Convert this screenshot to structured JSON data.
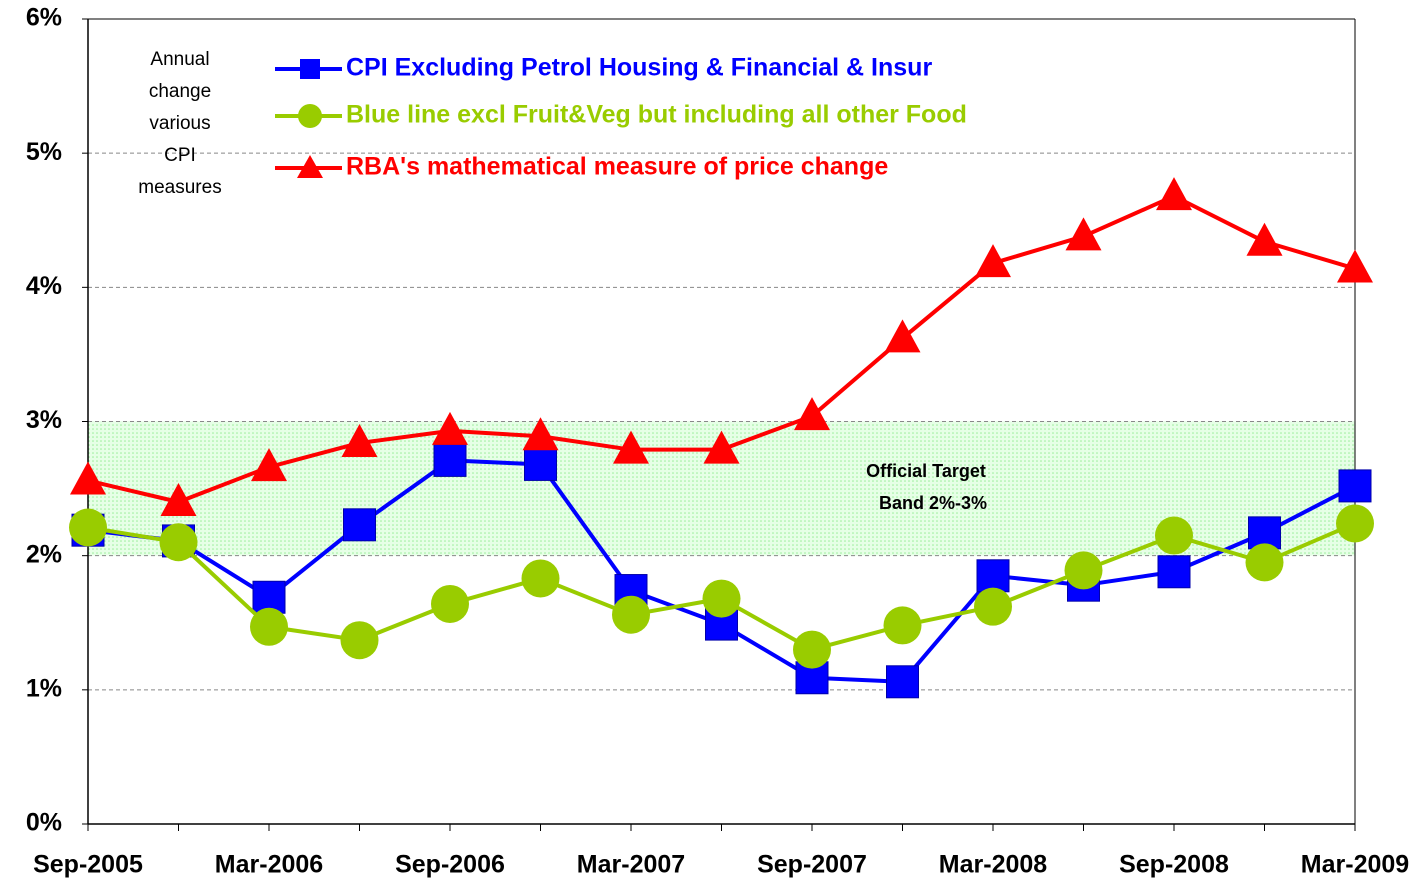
{
  "chart_data": {
    "type": "line",
    "categories": [
      "Sep-2005",
      null,
      "Mar-2006",
      null,
      "Sep-2006",
      null,
      "Mar-2007",
      null,
      "Sep-2007",
      null,
      "Mar-2008",
      null,
      "Sep-2008",
      null,
      "Mar-2009"
    ],
    "series": [
      {
        "name": "CPI Excluding Petrol Housing & Financial & Insur",
        "color": "#0000ff",
        "marker": "square",
        "values": [
          2.19,
          2.11,
          1.69,
          2.23,
          2.71,
          2.68,
          1.74,
          1.49,
          1.09,
          1.06,
          1.85,
          1.78,
          1.88,
          2.17,
          2.52
        ]
      },
      {
        "name": "Blue line excl Fruit&Veg but including all other Food",
        "color": "#99cc00",
        "marker": "circle",
        "values": [
          2.21,
          2.1,
          1.47,
          1.37,
          1.64,
          1.83,
          1.56,
          1.68,
          1.3,
          1.48,
          1.62,
          1.89,
          2.15,
          1.95,
          2.24
        ]
      },
      {
        "name": "RBA's mathematical measure of price change",
        "color": "#ff0000",
        "marker": "triangle",
        "values": [
          2.56,
          2.4,
          2.66,
          2.84,
          2.93,
          2.89,
          2.79,
          2.79,
          3.04,
          3.62,
          4.18,
          4.38,
          4.68,
          4.34,
          4.14
        ]
      }
    ],
    "ylim": [
      0,
      6
    ],
    "yticks": [
      {
        "value": 0,
        "label": "0%"
      },
      {
        "value": 1,
        "label": "1%"
      },
      {
        "value": 2,
        "label": "2%"
      },
      {
        "value": 3,
        "label": "3%"
      },
      {
        "value": 4,
        "label": "4%"
      },
      {
        "value": 5,
        "label": "5%"
      },
      {
        "value": 6,
        "label": "6%"
      }
    ],
    "grid": true,
    "band": {
      "range": [
        2,
        3
      ],
      "color": "#ccffcc",
      "label": [
        "Official Target",
        "Band 2%-3%"
      ]
    },
    "note": [
      "Annual",
      "change",
      "various",
      "CPI",
      "measures"
    ]
  }
}
